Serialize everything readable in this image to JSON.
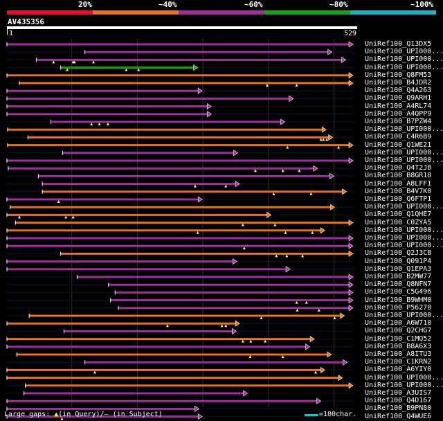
{
  "query": {
    "id": "AV435356",
    "start": "1",
    "end": "529",
    "length": 529
  },
  "identity_legend": [
    {
      "label": "20%",
      "color": "#e8102c"
    },
    {
      "label": "~40%",
      "color": "#e8721e"
    },
    {
      "label": "~60%",
      "color": "#a02fa0"
    },
    {
      "label": "~80%",
      "color": "#1aa01a"
    },
    {
      "label": "~100%",
      "color": "#18b4c4"
    }
  ],
  "hits": [
    {
      "name": "UniRef100_Q13DX5",
      "color": "#a02fa0",
      "qs": 1,
      "qe": 529,
      "ins": []
    },
    {
      "name": "UniRef100_UPI000...",
      "color": "#a02fa0",
      "qs": 120,
      "qe": 497,
      "ins": []
    },
    {
      "name": "UniRef100_UPI000...",
      "color": "#a02fa0",
      "qs": 46,
      "qe": 518,
      "ins": [
        72,
        102,
        104,
        133
      ]
    },
    {
      "name": "UniRef100_UPI000...",
      "color": "#1aa01a",
      "qs": 83,
      "qe": 292,
      "ins": [
        93,
        183,
        202
      ]
    },
    {
      "name": "UniRef100_Q8FM53",
      "color": "#e8721e",
      "qs": 1,
      "qe": 529,
      "ins": []
    },
    {
      "name": "UniRef100_B4JDR2",
      "color": "#e8721e",
      "qs": 20,
      "qe": 529,
      "ins": [
        398,
        443
      ]
    },
    {
      "name": "UniRef100_Q4A263",
      "color": "#a02fa0",
      "qs": 1,
      "qe": 299,
      "ins": []
    },
    {
      "name": "UniRef100_Q9ARH1",
      "color": "#a02fa0",
      "qs": 1,
      "qe": 438,
      "ins": []
    },
    {
      "name": "UniRef100_A4RL74",
      "color": "#a02fa0",
      "qs": 1,
      "qe": 313,
      "ins": []
    },
    {
      "name": "UniRef100_A4QPP9",
      "color": "#a02fa0",
      "qs": 1,
      "qe": 313,
      "ins": []
    },
    {
      "name": "UniRef100_B7PZW4",
      "color": "#a02fa0",
      "qs": 68,
      "qe": 425,
      "ins": [
        130,
        142,
        155
      ]
    },
    {
      "name": "UniRef100_UPI000...",
      "color": "#e8721e",
      "qs": 2,
      "qe": 488,
      "ins": []
    },
    {
      "name": "UniRef100_C4R6B9",
      "color": "#e8721e",
      "qs": 33,
      "qe": 498,
      "ins": [
        480,
        484,
        489
      ]
    },
    {
      "name": "UniRef100_Q1WE21",
      "color": "#e8721e",
      "qs": 2,
      "qe": 529,
      "ins": [
        429,
        507
      ]
    },
    {
      "name": "UniRef100_UPI000...",
      "color": "#a02fa0",
      "qs": 86,
      "qe": 353,
      "ins": []
    },
    {
      "name": "UniRef100_UPI000...",
      "color": "#a02fa0",
      "qs": 1,
      "qe": 529,
      "ins": []
    },
    {
      "name": "UniRef100_Q4T2J8",
      "color": "#a02fa0",
      "qs": 3,
      "qe": 475,
      "ins": [
        380,
        422,
        447
      ]
    },
    {
      "name": "UniRef100_B8GR18",
      "color": "#a02fa0",
      "qs": 49,
      "qe": 500,
      "ins": []
    },
    {
      "name": "UniRef100_A8LFF1",
      "color": "#a02fa0",
      "qs": 55,
      "qe": 356,
      "ins": [
        288,
        335
      ]
    },
    {
      "name": "UniRef100_B4V7K0",
      "color": "#e8721e",
      "qs": 55,
      "qe": 519,
      "ins": [
        408,
        465
      ]
    },
    {
      "name": "UniRef100_Q6FTP1",
      "color": "#a02fa0",
      "qs": 1,
      "qe": 299,
      "ins": [
        80
      ]
    },
    {
      "name": "UniRef100_UPI000...",
      "color": "#e8721e",
      "qs": 6,
      "qe": 501,
      "ins": []
    },
    {
      "name": "UniRef100_Q1QHE7",
      "color": "#e8721e",
      "qs": 1,
      "qe": 404,
      "ins": [
        20,
        91,
        102
      ]
    },
    {
      "name": "UniRef100_C0ZYA5",
      "color": "#e8721e",
      "qs": 14,
      "qe": 529,
      "ins": [
        361,
        410
      ]
    },
    {
      "name": "UniRef100_UPI000...",
      "color": "#e8721e",
      "qs": 1,
      "qe": 486,
      "ins": [
        292,
        426,
        467
      ]
    },
    {
      "name": "UniRef100_UPI000...",
      "color": "#a02fa0",
      "qs": 1,
      "qe": 529,
      "ins": []
    },
    {
      "name": "UniRef100_UPI000...",
      "color": "#a02fa0",
      "qs": 1,
      "qe": 529,
      "ins": [
        363
      ]
    },
    {
      "name": "UniRef100_Q2J3C8",
      "color": "#e8721e",
      "qs": 83,
      "qe": 529,
      "ins": [
        412,
        428,
        452
      ]
    },
    {
      "name": "UniRef100_Q091P4",
      "color": "#a02fa0",
      "qs": 1,
      "qe": 352,
      "ins": []
    },
    {
      "name": "UniRef100_Q1EPA3",
      "color": "#a02fa0",
      "qs": 1,
      "qe": 433,
      "ins": []
    },
    {
      "name": "UniRef100_B2MW77",
      "color": "#a02fa0",
      "qs": 108,
      "qe": 529,
      "ins": []
    },
    {
      "name": "UniRef100_Q8NFN7",
      "color": "#a02fa0",
      "qs": 156,
      "qe": 529,
      "ins": []
    },
    {
      "name": "UniRef100_C5G496",
      "color": "#a02fa0",
      "qs": 166,
      "qe": 529,
      "ins": []
    },
    {
      "name": "UniRef100_B9WHM0",
      "color": "#a02fa0",
      "qs": 159,
      "qe": 529,
      "ins": [
        443,
        458
      ]
    },
    {
      "name": "UniRef100_P56270",
      "color": "#a02fa0",
      "qs": 171,
      "qe": 529,
      "ins": [
        444,
        477
      ]
    },
    {
      "name": "UniRef100_UPI000...",
      "color": "#e8721e",
      "qs": 35,
      "qe": 516,
      "ins": [
        389,
        501
      ]
    },
    {
      "name": "UniRef100_A6W710",
      "color": "#e8721e",
      "qs": 1,
      "qe": 356,
      "ins": [
        246,
        329,
        335
      ]
    },
    {
      "name": "UniRef100_Q2CHG7",
      "color": "#a02fa0",
      "qs": 88,
      "qe": 351,
      "ins": []
    },
    {
      "name": "UniRef100_C1MQ52",
      "color": "#e8721e",
      "qs": 1,
      "qe": 470,
      "ins": [
        361,
        373,
        395
      ]
    },
    {
      "name": "UniRef100_B8A6X3",
      "color": "#a02fa0",
      "qs": 1,
      "qe": 463,
      "ins": []
    },
    {
      "name": "UniRef100_A8ITU3",
      "color": "#e8721e",
      "qs": 16,
      "qe": 496,
      "ins": [
        372,
        422
      ]
    },
    {
      "name": "UniRef100_C1KRN2",
      "color": "#a02fa0",
      "qs": 120,
      "qe": 520,
      "ins": []
    },
    {
      "name": "UniRef100_A6YIY0",
      "color": "#e8721e",
      "qs": 1,
      "qe": 486,
      "ins": [
        135,
        472
      ]
    },
    {
      "name": "UniRef100_UPI000...",
      "color": "#e8721e",
      "qs": 1,
      "qe": 513,
      "ins": []
    },
    {
      "name": "UniRef100_UPI000...",
      "color": "#e8721e",
      "qs": 29,
      "qe": 529,
      "ins": []
    },
    {
      "name": "UniRef100_A3UIS7",
      "color": "#a02fa0",
      "qs": 27,
      "qe": 368,
      "ins": []
    },
    {
      "name": "UniRef100_Q4D167",
      "color": "#a02fa0",
      "qs": 1,
      "qe": 480,
      "ins": []
    },
    {
      "name": "UniRef100_B9PN80",
      "color": "#a02fa0",
      "qs": 1,
      "qe": 294,
      "ins": []
    },
    {
      "name": "UniRef100_Q4WUE6",
      "color": "#a02fa0",
      "qs": 1,
      "qe": 299,
      "ins": [
        85
      ]
    }
  ],
  "footer": {
    "large_gaps_text": "Large gaps: ",
    "in_query_text": "(in Query)/",
    "dash_text": "—",
    "in_subject_text": " (in Subject)",
    "scale_text": "=100char."
  }
}
